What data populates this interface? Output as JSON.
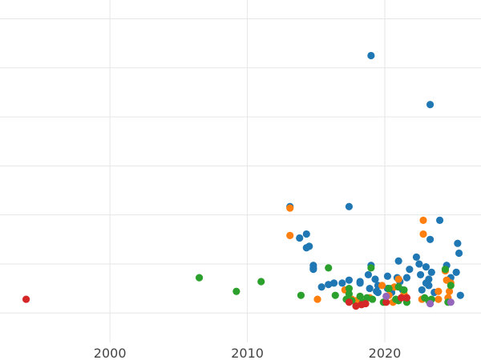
{
  "chart_data": {
    "type": "scatter",
    "title": "",
    "xlabel": "",
    "ylabel": "",
    "xlim": [
      1992,
      2027
    ],
    "ylim": [
      -6,
      64
    ],
    "xticks": [
      2000,
      2010,
      2020
    ],
    "xtick_labels": [
      "2000",
      "2010",
      "2020"
    ],
    "yticks": [
      0,
      10,
      20,
      30,
      40,
      50,
      60,
      70
    ],
    "grid": true,
    "legend": "none",
    "colors": {
      "blue": "#1f77b4",
      "orange": "#ff7f0e",
      "green": "#2ca02c",
      "red": "#d62728",
      "purple": "#9467bd"
    },
    "series": [
      {
        "name": "blue",
        "color": "#1f77b4",
        "points": [
          [
            2019.0,
            52.5
          ],
          [
            2023.3,
            42.5
          ],
          [
            2013.1,
            21.7
          ],
          [
            2017.4,
            21.7
          ],
          [
            2024.0,
            18.9
          ],
          [
            2014.3,
            16.1
          ],
          [
            2013.8,
            15.3
          ],
          [
            2014.5,
            13.6
          ],
          [
            2014.3,
            13.3
          ],
          [
            2023.3,
            15.0
          ],
          [
            2025.3,
            14.2
          ],
          [
            2025.4,
            12.2
          ],
          [
            2022.3,
            11.4
          ],
          [
            2021.0,
            10.6
          ],
          [
            2022.5,
            10.0
          ],
          [
            2024.5,
            9.7
          ],
          [
            2019.0,
            9.7
          ],
          [
            2023.0,
            9.4
          ],
          [
            2021.8,
            8.9
          ],
          [
            2014.8,
            9.7
          ],
          [
            2014.8,
            9.2
          ],
          [
            2014.8,
            8.9
          ],
          [
            2023.4,
            8.3
          ],
          [
            2025.2,
            8.3
          ],
          [
            2018.8,
            7.8
          ],
          [
            2020.2,
            7.5
          ],
          [
            2022.6,
            7.8
          ],
          [
            2021.6,
            7.2
          ],
          [
            2020.9,
            7.2
          ],
          [
            2021.0,
            6.9
          ],
          [
            2024.8,
            7.2
          ],
          [
            2017.4,
            6.7
          ],
          [
            2018.2,
            6.4
          ],
          [
            2016.9,
            6.1
          ],
          [
            2019.3,
            6.9
          ],
          [
            2016.3,
            6.1
          ],
          [
            2015.9,
            5.8
          ],
          [
            2015.4,
            5.3
          ],
          [
            2018.2,
            6.1
          ],
          [
            2023.0,
            6.1
          ],
          [
            2020.2,
            5.0
          ],
          [
            2019.5,
            5.6
          ],
          [
            2018.9,
            5.0
          ],
          [
            2021.1,
            6.4
          ],
          [
            2023.2,
            5.6
          ],
          [
            2022.7,
            4.7
          ],
          [
            2019.5,
            4.2
          ],
          [
            2019.4,
            4.4
          ],
          [
            2020.5,
            4.2
          ],
          [
            2021.3,
            4.7
          ],
          [
            2023.6,
            4.2
          ],
          [
            2025.5,
            3.6
          ],
          [
            2023.2,
            6.9
          ],
          [
            2020.5,
            5.0
          ]
        ]
      },
      {
        "name": "orange",
        "color": "#ff7f0e",
        "points": [
          [
            2013.1,
            21.4
          ],
          [
            2022.8,
            18.9
          ],
          [
            2013.1,
            15.8
          ],
          [
            2022.8,
            16.1
          ],
          [
            2024.4,
            8.6
          ],
          [
            2021.0,
            6.9
          ],
          [
            2024.5,
            6.7
          ],
          [
            2024.8,
            6.1
          ],
          [
            2019.8,
            5.6
          ],
          [
            2020.7,
            5.3
          ],
          [
            2017.1,
            4.7
          ],
          [
            2023.9,
            4.4
          ],
          [
            2024.7,
            4.4
          ],
          [
            2021.4,
            3.9
          ],
          [
            2020.3,
            3.6
          ],
          [
            2021.5,
            3.1
          ],
          [
            2017.4,
            3.1
          ],
          [
            2018.9,
            3.1
          ],
          [
            2015.1,
            2.8
          ],
          [
            2022.7,
            2.8
          ],
          [
            2023.9,
            2.8
          ],
          [
            2024.6,
            3.1
          ],
          [
            2020.6,
            2.2
          ],
          [
            2017.6,
            2.8
          ],
          [
            2018.1,
            2.2
          ],
          [
            2017.9,
            2.5
          ]
        ]
      },
      {
        "name": "green",
        "color": "#2ca02c",
        "points": [
          [
            2006.5,
            7.2
          ],
          [
            2011.0,
            6.4
          ],
          [
            2009.2,
            4.4
          ],
          [
            2015.9,
            9.2
          ],
          [
            2019.0,
            9.2
          ],
          [
            2024.4,
            8.9
          ],
          [
            2024.8,
            5.6
          ],
          [
            2017.4,
            5.0
          ],
          [
            2020.3,
            5.0
          ],
          [
            2021.0,
            5.3
          ],
          [
            2021.4,
            4.7
          ],
          [
            2013.9,
            3.6
          ],
          [
            2016.4,
            3.6
          ],
          [
            2017.4,
            3.9
          ],
          [
            2018.2,
            3.4
          ],
          [
            2018.7,
            3.1
          ],
          [
            2019.1,
            2.8
          ],
          [
            2020.8,
            2.8
          ],
          [
            2023.4,
            2.8
          ],
          [
            2022.9,
            3.1
          ],
          [
            2017.6,
            2.5
          ],
          [
            2017.2,
            2.8
          ],
          [
            2019.9,
            2.2
          ],
          [
            2021.6,
            2.2
          ],
          [
            2021.0,
            2.5
          ],
          [
            2023.2,
            2.5
          ],
          [
            2024.6,
            2.2
          ],
          [
            2018.4,
            2.2
          ]
        ]
      },
      {
        "name": "red",
        "color": "#d62728",
        "points": [
          [
            1993.9,
            2.8
          ],
          [
            2017.4,
            2.2
          ],
          [
            2017.9,
            1.4
          ],
          [
            2018.3,
            1.7
          ],
          [
            2018.6,
            1.9
          ],
          [
            2020.1,
            2.2
          ],
          [
            2021.2,
            3.1
          ],
          [
            2021.6,
            3.1
          ]
        ]
      },
      {
        "name": "purple",
        "color": "#9467bd",
        "points": [
          [
            2023.3,
            1.9
          ],
          [
            2024.8,
            2.2
          ],
          [
            2020.1,
            3.4
          ]
        ]
      }
    ]
  }
}
